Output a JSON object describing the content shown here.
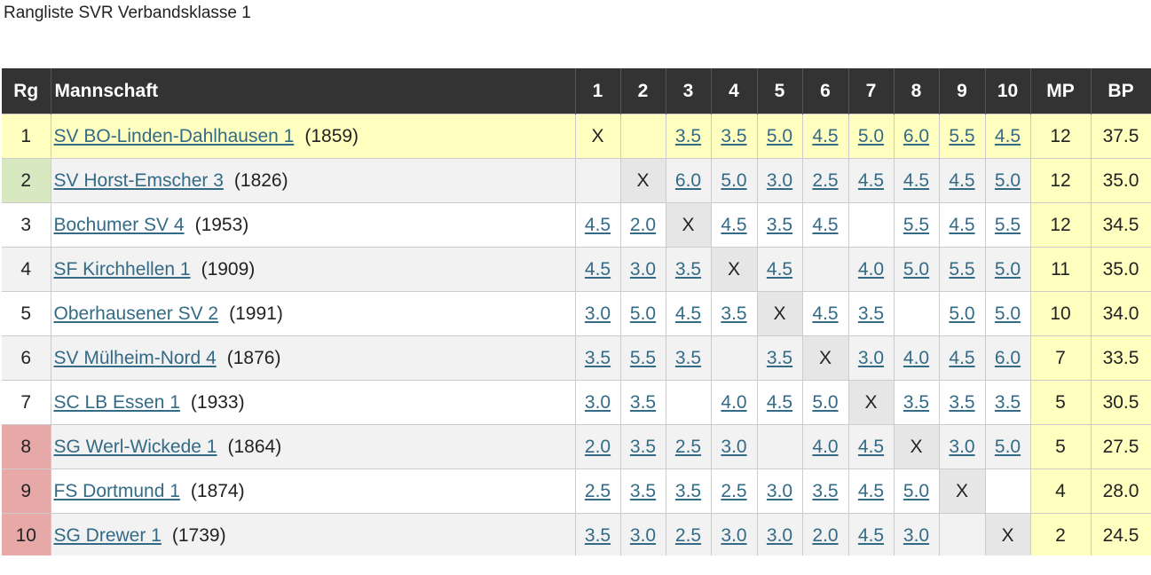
{
  "title": "Rangliste SVR Verbandsklasse 1",
  "headers": {
    "rank": "Rg",
    "team": "Mannschaft",
    "rounds": [
      "1",
      "2",
      "3",
      "4",
      "5",
      "6",
      "7",
      "8",
      "9",
      "10"
    ],
    "mp": "MP",
    "bp": "BP"
  },
  "colors": {
    "header_bg": "#333333",
    "first_row": "#ffffc0",
    "promotion": "#d8e9c2",
    "relegation": "#e7a8a8",
    "link": "#336b87"
  },
  "rows": [
    {
      "rank": "1",
      "team": "SV BO-Linden-Dahlhausen 1",
      "rating": "(1859)",
      "scores": [
        "X",
        "",
        "3.5",
        "3.5",
        "5.0",
        "4.5",
        "5.0",
        "6.0",
        "5.5",
        "4.5"
      ],
      "mp": "12",
      "bp": "37.5",
      "status": "first"
    },
    {
      "rank": "2",
      "team": "SV Horst-Emscher 3",
      "rating": "(1826)",
      "scores": [
        "",
        "X",
        "6.0",
        "5.0",
        "3.0",
        "2.5",
        "4.5",
        "4.5",
        "4.5",
        "5.0"
      ],
      "mp": "12",
      "bp": "35.0",
      "status": "promotion"
    },
    {
      "rank": "3",
      "team": "Bochumer SV 4",
      "rating": "(1953)",
      "scores": [
        "4.5",
        "2.0",
        "X",
        "4.5",
        "3.5",
        "4.5",
        "",
        "5.5",
        "4.5",
        "5.5"
      ],
      "mp": "12",
      "bp": "34.5",
      "status": ""
    },
    {
      "rank": "4",
      "team": "SF Kirchhellen 1",
      "rating": "(1909)",
      "scores": [
        "4.5",
        "3.0",
        "3.5",
        "X",
        "4.5",
        "",
        "4.0",
        "5.0",
        "5.5",
        "5.0"
      ],
      "mp": "11",
      "bp": "35.0",
      "status": ""
    },
    {
      "rank": "5",
      "team": "Oberhausener SV 2",
      "rating": "(1991)",
      "scores": [
        "3.0",
        "5.0",
        "4.5",
        "3.5",
        "X",
        "4.5",
        "3.5",
        "",
        "5.0",
        "5.0"
      ],
      "mp": "10",
      "bp": "34.0",
      "status": ""
    },
    {
      "rank": "6",
      "team": "SV Mülheim-Nord 4",
      "rating": "(1876)",
      "scores": [
        "3.5",
        "5.5",
        "3.5",
        "",
        "3.5",
        "X",
        "3.0",
        "4.0",
        "4.5",
        "6.0"
      ],
      "mp": "7",
      "bp": "33.5",
      "status": ""
    },
    {
      "rank": "7",
      "team": "SC LB Essen 1",
      "rating": "(1933)",
      "scores": [
        "3.0",
        "3.5",
        "",
        "4.0",
        "4.5",
        "5.0",
        "X",
        "3.5",
        "3.5",
        "3.5"
      ],
      "mp": "5",
      "bp": "30.5",
      "status": ""
    },
    {
      "rank": "8",
      "team": "SG Werl-Wickede 1",
      "rating": "(1864)",
      "scores": [
        "2.0",
        "3.5",
        "2.5",
        "3.0",
        "",
        "4.0",
        "4.5",
        "X",
        "3.0",
        "5.0"
      ],
      "mp": "5",
      "bp": "27.5",
      "status": "relegation"
    },
    {
      "rank": "9",
      "team": "FS Dortmund 1",
      "rating": "(1874)",
      "scores": [
        "2.5",
        "3.5",
        "3.5",
        "2.5",
        "3.0",
        "3.5",
        "4.5",
        "5.0",
        "X",
        ""
      ],
      "mp": "4",
      "bp": "28.0",
      "status": "relegation"
    },
    {
      "rank": "10",
      "team": "SG Drewer 1",
      "rating": "(1739)",
      "scores": [
        "3.5",
        "3.0",
        "2.5",
        "3.0",
        "3.0",
        "2.0",
        "4.5",
        "3.0",
        "",
        "X"
      ],
      "mp": "2",
      "bp": "24.5",
      "status": "relegation"
    }
  ]
}
